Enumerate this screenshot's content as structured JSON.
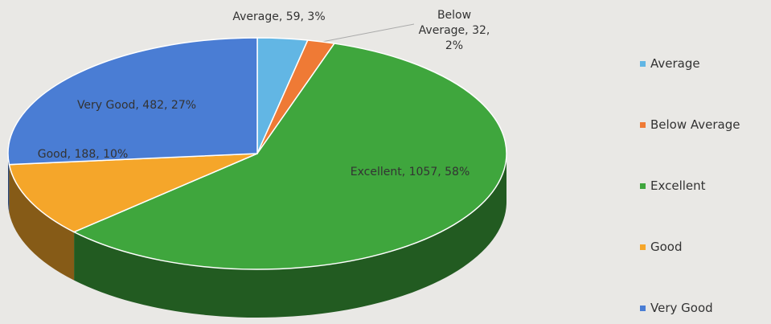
{
  "chart_data": {
    "type": "pie3d",
    "categories": [
      "Average",
      "Below Average",
      "Excellent",
      "Good",
      "Very Good"
    ],
    "values": [
      59,
      32,
      1057,
      188,
      482
    ],
    "value_labels": [
      "Average, 59, 3%",
      "Below Average, 32, 2%",
      "Excellent, 1057, 58%",
      "Good, 188, 10%",
      "Very Good, 482, 27%"
    ],
    "colors": [
      "#62b6e4",
      "#ef7a35",
      "#3fa63d",
      "#f5a62a",
      "#4a7dd4"
    ],
    "legend": "right"
  }
}
